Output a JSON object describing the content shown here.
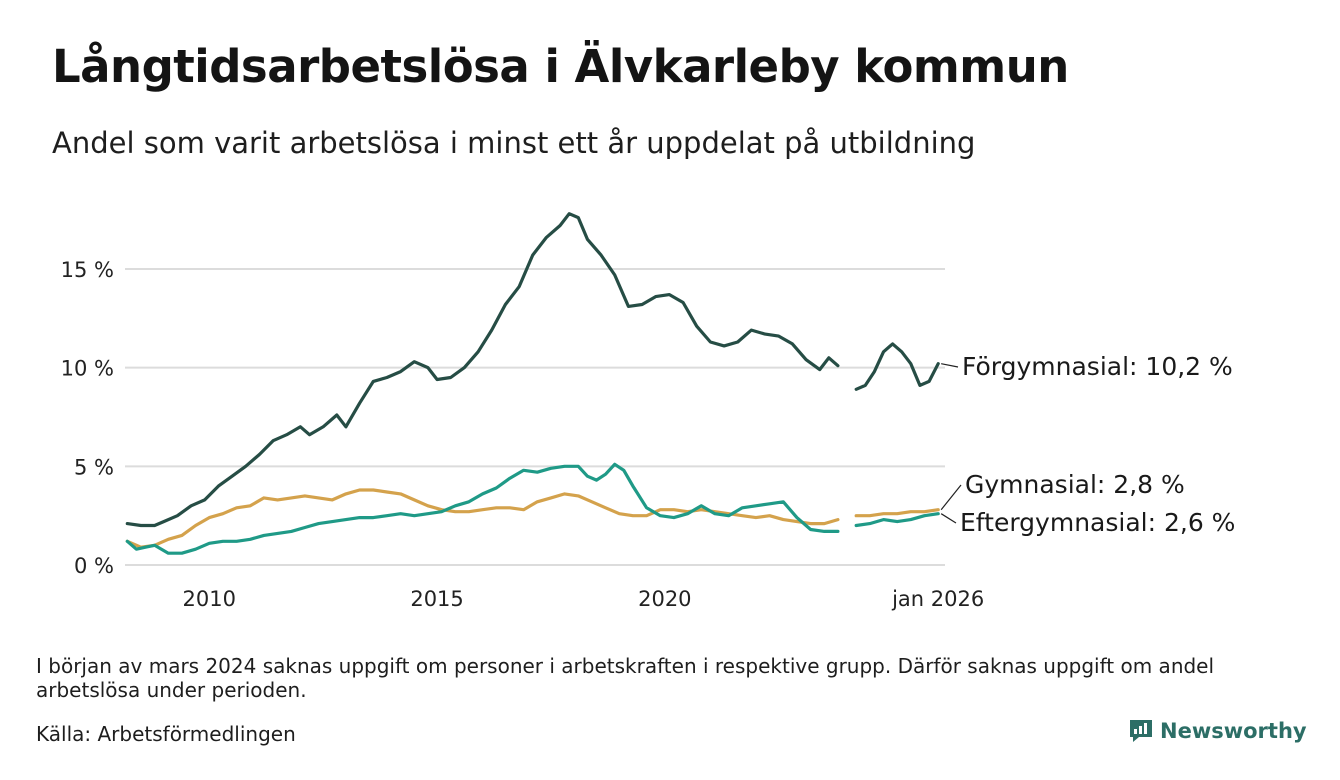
{
  "header": {
    "title": "Långtidsarbetslösa i Älvkarleby kommun",
    "subtitle": "Andel som varit arbetslösa i minst ett år uppdelat på utbildning"
  },
  "footer": {
    "note": "I början av mars 2024 saknas uppgift om personer i arbetskraften i respektive grupp. Därför saknas uppgift om andel arbetslösa under perioden.",
    "source": "Källa: Arbetsförmedlingen",
    "brand": "Newsworthy"
  },
  "colors": {
    "forgymnasial": "#264d45",
    "gymnasial": "#d4a24c",
    "eftergymnasial": "#1f9a87",
    "grid": "#dcdcdc",
    "brand": "#2c6e66"
  },
  "chart_data": {
    "type": "line",
    "title": "Långtidsarbetslösa i Älvkarleby kommun",
    "xlabel": "",
    "ylabel": "",
    "xlim": [
      2008.15,
      2026.15
    ],
    "ylim": [
      0,
      19
    ],
    "y_ticks": [
      0,
      5,
      10,
      15
    ],
    "y_tick_labels": [
      "0 %",
      "5 %",
      "10 %",
      "15 %"
    ],
    "x_ticks": [
      2010,
      2015,
      2020,
      2026.0
    ],
    "x_tick_labels": [
      "2010",
      "2015",
      "2020",
      "jan 2026"
    ],
    "grid": true,
    "series": [
      {
        "name": "Förgymnasial",
        "label": "Förgymnasial: 10,2 %",
        "last_value": 10.2,
        "color": "#264d45",
        "segments": [
          [
            [
              2008.2,
              2.1
            ],
            [
              2008.5,
              2.0
            ],
            [
              2008.8,
              2.0
            ],
            [
              2009.0,
              2.2
            ],
            [
              2009.3,
              2.5
            ],
            [
              2009.6,
              3.0
            ],
            [
              2009.9,
              3.3
            ],
            [
              2010.2,
              4.0
            ],
            [
              2010.5,
              4.5
            ],
            [
              2010.8,
              5.0
            ],
            [
              2011.1,
              5.6
            ],
            [
              2011.4,
              6.3
            ],
            [
              2011.7,
              6.6
            ],
            [
              2012.0,
              7.0
            ],
            [
              2012.2,
              6.6
            ],
            [
              2012.5,
              7.0
            ],
            [
              2012.8,
              7.6
            ],
            [
              2013.0,
              7.0
            ],
            [
              2013.3,
              8.2
            ],
            [
              2013.6,
              9.3
            ],
            [
              2013.9,
              9.5
            ],
            [
              2014.2,
              9.8
            ],
            [
              2014.5,
              10.3
            ],
            [
              2014.8,
              10.0
            ],
            [
              2015.0,
              9.4
            ],
            [
              2015.3,
              9.5
            ],
            [
              2015.6,
              10.0
            ],
            [
              2015.9,
              10.8
            ],
            [
              2016.2,
              11.9
            ],
            [
              2016.5,
              13.2
            ],
            [
              2016.8,
              14.1
            ],
            [
              2017.1,
              15.7
            ],
            [
              2017.4,
              16.6
            ],
            [
              2017.7,
              17.2
            ],
            [
              2017.9,
              17.8
            ],
            [
              2018.1,
              17.6
            ],
            [
              2018.3,
              16.5
            ],
            [
              2018.6,
              15.7
            ],
            [
              2018.9,
              14.7
            ],
            [
              2019.2,
              13.1
            ],
            [
              2019.5,
              13.2
            ],
            [
              2019.8,
              13.6
            ],
            [
              2020.1,
              13.7
            ],
            [
              2020.4,
              13.3
            ],
            [
              2020.7,
              12.1
            ],
            [
              2021.0,
              11.3
            ],
            [
              2021.3,
              11.1
            ],
            [
              2021.6,
              11.3
            ],
            [
              2021.9,
              11.9
            ],
            [
              2022.2,
              11.7
            ],
            [
              2022.5,
              11.6
            ],
            [
              2022.8,
              11.2
            ],
            [
              2023.1,
              10.4
            ],
            [
              2023.4,
              9.9
            ],
            [
              2023.6,
              10.5
            ],
            [
              2023.8,
              10.1
            ]
          ],
          [
            [
              2024.2,
              8.9
            ],
            [
              2024.4,
              9.1
            ],
            [
              2024.6,
              9.8
            ],
            [
              2024.8,
              10.8
            ],
            [
              2025.0,
              11.2
            ],
            [
              2025.2,
              10.8
            ],
            [
              2025.4,
              10.2
            ],
            [
              2025.6,
              9.1
            ],
            [
              2025.8,
              9.3
            ],
            [
              2026.0,
              10.2
            ]
          ]
        ]
      },
      {
        "name": "Gymnasial",
        "label": "Gymnasial:  2,8 %",
        "last_value": 2.8,
        "color": "#d4a24c",
        "segments": [
          [
            [
              2008.2,
              1.2
            ],
            [
              2008.5,
              0.9
            ],
            [
              2008.8,
              1.0
            ],
            [
              2009.1,
              1.3
            ],
            [
              2009.4,
              1.5
            ],
            [
              2009.7,
              2.0
            ],
            [
              2010.0,
              2.4
            ],
            [
              2010.3,
              2.6
            ],
            [
              2010.6,
              2.9
            ],
            [
              2010.9,
              3.0
            ],
            [
              2011.2,
              3.4
            ],
            [
              2011.5,
              3.3
            ],
            [
              2011.8,
              3.4
            ],
            [
              2012.1,
              3.5
            ],
            [
              2012.4,
              3.4
            ],
            [
              2012.7,
              3.3
            ],
            [
              2013.0,
              3.6
            ],
            [
              2013.3,
              3.8
            ],
            [
              2013.6,
              3.8
            ],
            [
              2013.9,
              3.7
            ],
            [
              2014.2,
              3.6
            ],
            [
              2014.5,
              3.3
            ],
            [
              2014.8,
              3.0
            ],
            [
              2015.1,
              2.8
            ],
            [
              2015.4,
              2.7
            ],
            [
              2015.7,
              2.7
            ],
            [
              2016.0,
              2.8
            ],
            [
              2016.3,
              2.9
            ],
            [
              2016.6,
              2.9
            ],
            [
              2016.9,
              2.8
            ],
            [
              2017.2,
              3.2
            ],
            [
              2017.5,
              3.4
            ],
            [
              2017.8,
              3.6
            ],
            [
              2018.1,
              3.5
            ],
            [
              2018.4,
              3.2
            ],
            [
              2018.7,
              2.9
            ],
            [
              2019.0,
              2.6
            ],
            [
              2019.3,
              2.5
            ],
            [
              2019.6,
              2.5
            ],
            [
              2019.9,
              2.8
            ],
            [
              2020.2,
              2.8
            ],
            [
              2020.5,
              2.7
            ],
            [
              2020.8,
              2.8
            ],
            [
              2021.1,
              2.7
            ],
            [
              2021.4,
              2.6
            ],
            [
              2021.7,
              2.5
            ],
            [
              2022.0,
              2.4
            ],
            [
              2022.3,
              2.5
            ],
            [
              2022.6,
              2.3
            ],
            [
              2022.9,
              2.2
            ],
            [
              2023.2,
              2.1
            ],
            [
              2023.5,
              2.1
            ],
            [
              2023.8,
              2.3
            ]
          ],
          [
            [
              2024.2,
              2.5
            ],
            [
              2024.5,
              2.5
            ],
            [
              2024.8,
              2.6
            ],
            [
              2025.1,
              2.6
            ],
            [
              2025.4,
              2.7
            ],
            [
              2025.7,
              2.7
            ],
            [
              2026.0,
              2.8
            ]
          ]
        ]
      },
      {
        "name": "Eftergymnasial",
        "label": "Eftergymnasial:  2,6 %",
        "last_value": 2.6,
        "color": "#1f9a87",
        "segments": [
          [
            [
              2008.2,
              1.2
            ],
            [
              2008.4,
              0.8
            ],
            [
              2008.6,
              0.9
            ],
            [
              2008.8,
              1.0
            ],
            [
              2009.1,
              0.6
            ],
            [
              2009.4,
              0.6
            ],
            [
              2009.7,
              0.8
            ],
            [
              2010.0,
              1.1
            ],
            [
              2010.3,
              1.2
            ],
            [
              2010.6,
              1.2
            ],
            [
              2010.9,
              1.3
            ],
            [
              2011.2,
              1.5
            ],
            [
              2011.5,
              1.6
            ],
            [
              2011.8,
              1.7
            ],
            [
              2012.1,
              1.9
            ],
            [
              2012.4,
              2.1
            ],
            [
              2012.7,
              2.2
            ],
            [
              2013.0,
              2.3
            ],
            [
              2013.3,
              2.4
            ],
            [
              2013.6,
              2.4
            ],
            [
              2013.9,
              2.5
            ],
            [
              2014.2,
              2.6
            ],
            [
              2014.5,
              2.5
            ],
            [
              2014.8,
              2.6
            ],
            [
              2015.1,
              2.7
            ],
            [
              2015.4,
              3.0
            ],
            [
              2015.7,
              3.2
            ],
            [
              2016.0,
              3.6
            ],
            [
              2016.3,
              3.9
            ],
            [
              2016.6,
              4.4
            ],
            [
              2016.9,
              4.8
            ],
            [
              2017.2,
              4.7
            ],
            [
              2017.5,
              4.9
            ],
            [
              2017.8,
              5.0
            ],
            [
              2018.1,
              5.0
            ],
            [
              2018.3,
              4.5
            ],
            [
              2018.5,
              4.3
            ],
            [
              2018.7,
              4.6
            ],
            [
              2018.9,
              5.1
            ],
            [
              2019.1,
              4.8
            ],
            [
              2019.3,
              4.0
            ],
            [
              2019.6,
              2.9
            ],
            [
              2019.9,
              2.5
            ],
            [
              2020.2,
              2.4
            ],
            [
              2020.5,
              2.6
            ],
            [
              2020.8,
              3.0
            ],
            [
              2021.1,
              2.6
            ],
            [
              2021.4,
              2.5
            ],
            [
              2021.7,
              2.9
            ],
            [
              2022.0,
              3.0
            ],
            [
              2022.3,
              3.1
            ],
            [
              2022.6,
              3.2
            ],
            [
              2022.9,
              2.4
            ],
            [
              2023.2,
              1.8
            ],
            [
              2023.5,
              1.7
            ],
            [
              2023.8,
              1.7
            ]
          ],
          [
            [
              2024.2,
              2.0
            ],
            [
              2024.5,
              2.1
            ],
            [
              2024.8,
              2.3
            ],
            [
              2025.1,
              2.2
            ],
            [
              2025.4,
              2.3
            ],
            [
              2025.7,
              2.5
            ],
            [
              2026.0,
              2.6
            ]
          ]
        ]
      }
    ]
  }
}
